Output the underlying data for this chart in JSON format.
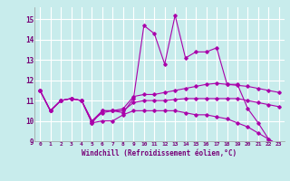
{
  "xlabel": "Windchill (Refroidissement éolien,°C)",
  "background_color": "#c8ecec",
  "grid_color": "#aacccc",
  "line_color": "#aa00aa",
  "xlim": [
    -0.5,
    23.5
  ],
  "ylim": [
    9.0,
    15.6
  ],
  "yticks": [
    9,
    10,
    11,
    12,
    13,
    14,
    15
  ],
  "xticks": [
    0,
    1,
    2,
    3,
    4,
    5,
    6,
    7,
    8,
    9,
    10,
    11,
    12,
    13,
    14,
    15,
    16,
    17,
    18,
    19,
    20,
    21,
    22,
    23
  ],
  "series": [
    [
      11.5,
      10.5,
      11.0,
      11.1,
      11.0,
      9.9,
      10.5,
      10.5,
      10.4,
      11.1,
      14.7,
      14.3,
      12.8,
      15.2,
      13.1,
      13.4,
      13.4,
      13.6,
      11.8,
      11.8,
      10.6,
      9.9,
      9.1,
      8.8
    ],
    [
      11.5,
      10.5,
      11.0,
      11.1,
      11.0,
      10.0,
      10.5,
      10.5,
      10.6,
      11.2,
      11.3,
      11.3,
      11.4,
      11.5,
      11.6,
      11.7,
      11.8,
      11.85,
      11.8,
      11.75,
      11.7,
      11.6,
      11.5,
      11.4
    ],
    [
      11.5,
      10.5,
      11.0,
      11.1,
      11.0,
      10.0,
      10.4,
      10.5,
      10.5,
      10.9,
      11.0,
      11.0,
      11.0,
      11.05,
      11.1,
      11.1,
      11.1,
      11.1,
      11.1,
      11.1,
      11.0,
      10.9,
      10.8,
      10.7
    ],
    [
      11.5,
      10.5,
      11.0,
      11.1,
      11.0,
      9.9,
      10.0,
      10.0,
      10.3,
      10.5,
      10.5,
      10.5,
      10.5,
      10.5,
      10.4,
      10.3,
      10.3,
      10.2,
      10.1,
      9.9,
      9.7,
      9.4,
      9.1,
      8.8
    ]
  ]
}
